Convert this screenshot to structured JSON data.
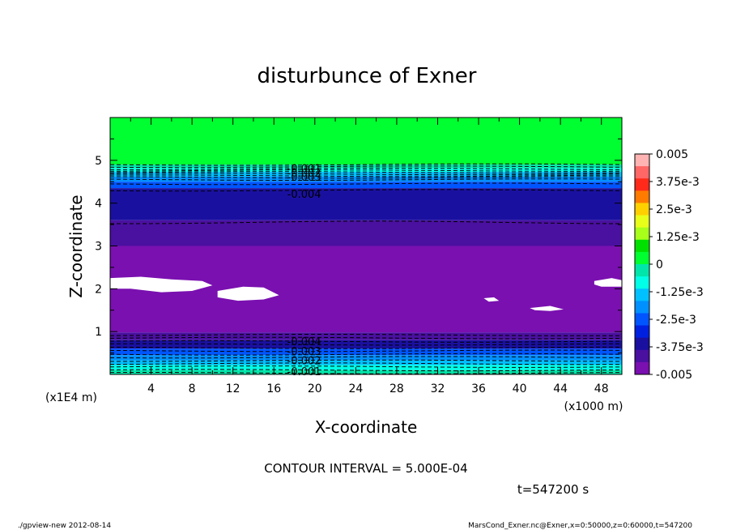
{
  "chart_data": {
    "type": "heatmap",
    "title": "disturbunce of Exner",
    "xlabel": "X-coordinate",
    "ylabel": "Z-coordinate",
    "x_unit": "(x1000 m)",
    "z_unit": "(x1E4 m)",
    "xlim": [
      0,
      50
    ],
    "zlim": [
      0,
      6
    ],
    "x_ticks": [
      "4",
      "8",
      "12",
      "16",
      "20",
      "24",
      "28",
      "32",
      "36",
      "40",
      "44",
      "48"
    ],
    "z_ticks": [
      "1",
      "2",
      "3",
      "4",
      "5"
    ],
    "colorbar_labels": [
      "0.005",
      "3.75e-3",
      "2.5e-3",
      "1.25e-3",
      "0",
      "-1.25e-3",
      "-2.5e-3",
      "-3.75e-3",
      "-0.005"
    ],
    "colorbar_colors": [
      "#ffb3b3",
      "#ff6666",
      "#ff2a1a",
      "#ff7b00",
      "#ffd000",
      "#e8ff1a",
      "#a8ff1a",
      "#00e000",
      "#00ff30",
      "#00e6aa",
      "#00ffe6",
      "#00c0ff",
      "#0090ff",
      "#0055ff",
      "#0020e0",
      "#1a10a0",
      "#4a10a0",
      "#7a10b0"
    ],
    "bands": [
      {
        "z_top": 6.0,
        "z_bottom": 4.9,
        "value": "0",
        "color": "#00ff30"
      },
      {
        "z_top": 4.9,
        "z_bottom": 4.82,
        "value": "-1.25e-3",
        "color": "#00e6aa"
      },
      {
        "z_top": 4.82,
        "z_bottom": 4.73,
        "value": "-1.5e-3",
        "color": "#00ffe6"
      },
      {
        "z_top": 4.73,
        "z_bottom": 4.62,
        "value": "-2.0e-3",
        "color": "#00c0ff"
      },
      {
        "z_top": 4.62,
        "z_bottom": 4.5,
        "value": "-2.5e-3",
        "color": "#0090ff"
      },
      {
        "z_top": 4.5,
        "z_bottom": 4.35,
        "value": "-3.0e-3",
        "color": "#0055ff"
      },
      {
        "z_top": 4.35,
        "z_bottom": 3.6,
        "value": "-3.75e-3",
        "color": "#1a10a0"
      },
      {
        "z_top": 3.6,
        "z_bottom": 3.0,
        "value": "-4.25e-3",
        "color": "#4a10a0"
      },
      {
        "z_top": 3.0,
        "z_bottom": 0.98,
        "value": "-0.005",
        "color": "#7a10b0"
      },
      {
        "z_top": 0.98,
        "z_bottom": 0.8,
        "value": "-4.25e-3",
        "color": "#4a10a0"
      },
      {
        "z_top": 0.8,
        "z_bottom": 0.6,
        "value": "-3.75e-3",
        "color": "#1a10a0"
      },
      {
        "z_top": 0.6,
        "z_bottom": 0.45,
        "value": "-3.0e-3",
        "color": "#0055ff"
      },
      {
        "z_top": 0.45,
        "z_bottom": 0.33,
        "value": "-2.5e-3",
        "color": "#0090ff"
      },
      {
        "z_top": 0.33,
        "z_bottom": 0.22,
        "value": "-2.0e-3",
        "color": "#00c0ff"
      },
      {
        "z_top": 0.22,
        "z_bottom": 0.1,
        "value": "-1.5e-3",
        "color": "#00ffe6"
      },
      {
        "z_top": 0.1,
        "z_bottom": 0.0,
        "value": "-1.25e-3",
        "color": "#00e6aa"
      }
    ],
    "contour_z": [
      4.9,
      4.85,
      4.8,
      4.76,
      4.72,
      4.68,
      4.64,
      4.6,
      4.55,
      4.45,
      4.3,
      3.55,
      0.92,
      0.85,
      0.77,
      0.7,
      0.62,
      0.55,
      0.47,
      0.4,
      0.32,
      0.25,
      0.18,
      0.1,
      0.03
    ],
    "contour_labels": [
      {
        "text": "-0.001",
        "x": 17.3,
        "z": 4.82
      },
      {
        "text": "-0.002",
        "x": 17.3,
        "z": 4.71
      },
      {
        "text": "-0.003",
        "x": 17.3,
        "z": 4.62
      },
      {
        "text": "-0.004",
        "x": 17.3,
        "z": 4.22
      },
      {
        "text": "-0.004",
        "x": 17.3,
        "z": 0.78
      },
      {
        "text": "-0.003",
        "x": 17.3,
        "z": 0.55
      },
      {
        "text": "-0.002",
        "x": 17.3,
        "z": 0.33
      },
      {
        "text": "-0.001",
        "x": 17.3,
        "z": 0.08
      }
    ],
    "missing_patches": [
      {
        "points": [
          [
            0,
            2.25
          ],
          [
            3,
            2.28
          ],
          [
            6,
            2.22
          ],
          [
            9,
            2.18
          ],
          [
            10,
            2.08
          ],
          [
            8,
            1.95
          ],
          [
            5,
            1.92
          ],
          [
            2,
            2.0
          ],
          [
            0,
            2.0
          ]
        ]
      },
      {
        "points": [
          [
            10.5,
            1.95
          ],
          [
            13,
            2.05
          ],
          [
            15,
            2.03
          ],
          [
            16.5,
            1.85
          ],
          [
            15,
            1.75
          ],
          [
            12.5,
            1.72
          ],
          [
            10.5,
            1.8
          ]
        ]
      },
      {
        "points": [
          [
            36.5,
            1.78
          ],
          [
            37.5,
            1.8
          ],
          [
            38,
            1.72
          ],
          [
            37,
            1.7
          ]
        ]
      },
      {
        "points": [
          [
            41,
            1.55
          ],
          [
            43,
            1.6
          ],
          [
            44.3,
            1.52
          ],
          [
            43,
            1.48
          ],
          [
            41.5,
            1.5
          ]
        ]
      },
      {
        "points": [
          [
            47.3,
            2.18
          ],
          [
            49,
            2.25
          ],
          [
            50,
            2.2
          ],
          [
            50,
            2.05
          ],
          [
            48,
            2.05
          ],
          [
            47.3,
            2.1
          ]
        ]
      }
    ]
  },
  "info": {
    "contour_interval": "CONTOUR INTERVAL = 5.000E-04",
    "time": "t=547200 s",
    "footer_left": "./gpview-new  2012-08-14",
    "footer_right": "MarsCond_Exner.nc@Exner,x=0:50000,z=0:60000,t=547200"
  }
}
